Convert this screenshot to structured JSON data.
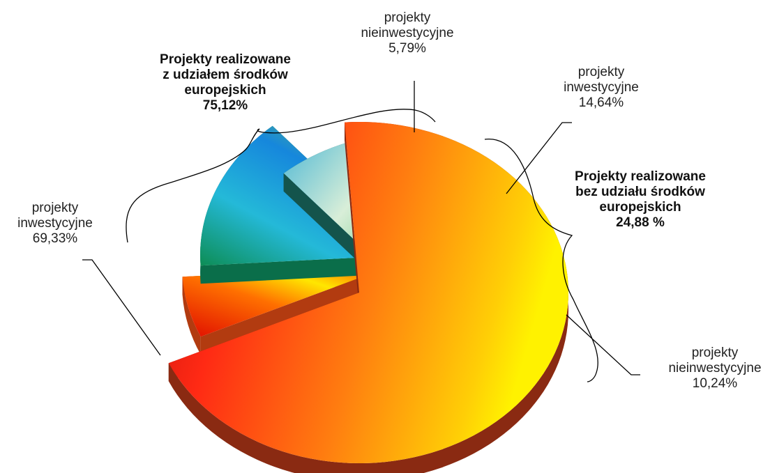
{
  "chart_data": {
    "type": "pie",
    "slices": [
      {
        "group": "eu",
        "label": [
          "projekty",
          "inwestycyjne"
        ],
        "percent_text": "69,33%",
        "value": 69.33
      },
      {
        "group": "eu",
        "label": [
          "projekty",
          "nieinwestycyjne"
        ],
        "percent_text": "5,79%",
        "value": 5.79
      },
      {
        "group": "non_eu",
        "label": [
          "projekty",
          "inwestycyjne"
        ],
        "percent_text": "14,64%",
        "value": 14.64
      },
      {
        "group": "non_eu",
        "label": [
          "projekty",
          "nieinwestycyjne"
        ],
        "percent_text": "10,24%",
        "value": 10.24
      }
    ],
    "groups": {
      "eu": {
        "lines": [
          "Projekty realizowane",
          "z udziałem środków",
          "europejskich"
        ],
        "percent_text": "75,12%",
        "value": 75.12
      },
      "non_eu": {
        "lines": [
          "Projekty  realizowane",
          "bez udziału środków",
          "europejskich"
        ],
        "percent_text": "24,88 %",
        "value": 24.88
      }
    },
    "style": "3d-exploded-pie",
    "colors": {
      "eu_investment": [
        "#d20d0d",
        "#ff2a14",
        "#ff7a10",
        "#ffd800"
      ],
      "eu_non_investment": [
        "#ff1a00",
        "#ffc400",
        "#ffe600"
      ],
      "non_eu_investment": [
        "#0a8e55",
        "#1c9adf",
        "#60d9f2"
      ],
      "non_eu_non_investment": [
        "#0a8f4f",
        "#a8e6d2",
        "#b0e4f0"
      ]
    }
  }
}
